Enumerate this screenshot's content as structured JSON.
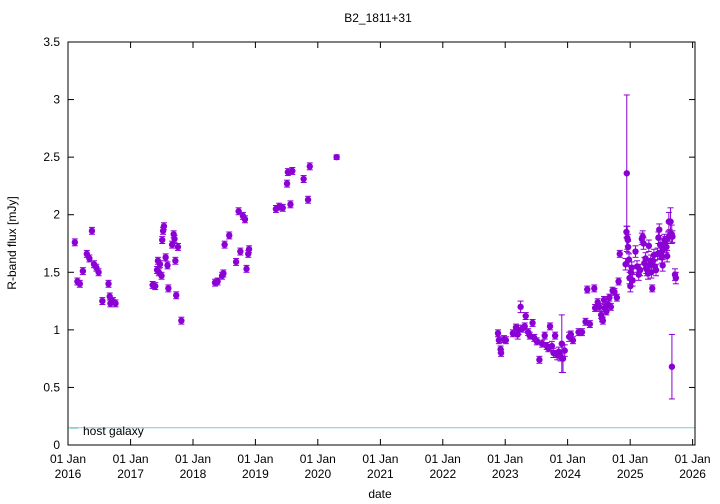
{
  "chart_data": {
    "type": "scatter",
    "title": "B2_1811+31",
    "xlabel": "date",
    "ylabel": "R-band flux [mJy]",
    "ylim": [
      0,
      3.5
    ],
    "xlim": [
      "2016-01-01",
      "2026-01-15"
    ],
    "grid": false,
    "legend_position": "bottom-left",
    "y_ticks": [
      "0",
      "0.5",
      "1",
      "1.5",
      "2",
      "2.5",
      "3",
      "3.5"
    ],
    "x_ticks": [
      {
        "date": "2016-01-01",
        "line1": "01 Jan",
        "line2": "2016"
      },
      {
        "date": "2017-01-01",
        "line1": "01 Jan",
        "line2": "2017"
      },
      {
        "date": "2018-01-01",
        "line1": "01 Jan",
        "line2": "2018"
      },
      {
        "date": "2019-01-01",
        "line1": "01 Jan",
        "line2": "2019"
      },
      {
        "date": "2020-01-01",
        "line1": "01 Jan",
        "line2": "2020"
      },
      {
        "date": "2021-01-01",
        "line1": "01 Jan",
        "line2": "2021"
      },
      {
        "date": "2022-01-01",
        "line1": "01 Jan",
        "line2": "2022"
      },
      {
        "date": "2023-01-01",
        "line1": "01 Jan",
        "line2": "2023"
      },
      {
        "date": "2024-01-01",
        "line1": "01 Jan",
        "line2": "2024"
      },
      {
        "date": "2025-01-01",
        "line1": "01 Jan",
        "line2": "2025"
      },
      {
        "date": "2026-01-01",
        "line1": "01 Jan",
        "line2": "2026"
      }
    ],
    "host_galaxy": {
      "name": "host galaxy",
      "value": 0.15,
      "color": "#7fc8d6"
    },
    "series_color": "#8b00d4",
    "series": [
      {
        "points": [
          [
            "2016-02-10",
            1.76,
            0.03
          ],
          [
            "2016-02-25",
            1.42,
            0.03
          ],
          [
            "2016-03-10",
            1.4,
            0.03
          ],
          [
            "2016-03-28",
            1.51,
            0.03
          ],
          [
            "2016-04-20",
            1.66,
            0.03
          ],
          [
            "2016-05-05",
            1.62,
            0.03
          ],
          [
            "2016-05-20",
            1.86,
            0.03
          ],
          [
            "2016-06-01",
            1.57,
            0.03
          ],
          [
            "2016-06-15",
            1.54,
            0.03
          ],
          [
            "2016-06-28",
            1.5,
            0.03
          ],
          [
            "2016-07-20",
            1.25,
            0.03
          ],
          [
            "2016-08-25",
            1.4,
            0.03
          ],
          [
            "2016-09-01",
            1.29,
            0.03
          ],
          [
            "2016-09-05",
            1.23,
            0.03
          ],
          [
            "2016-09-20",
            1.25,
            0.03
          ],
          [
            "2016-10-05",
            1.23,
            0.03
          ],
          [
            "2017-05-10",
            1.39,
            0.03
          ],
          [
            "2017-05-25",
            1.38,
            0.03
          ],
          [
            "2017-06-05",
            1.52,
            0.03
          ],
          [
            "2017-06-10",
            1.6,
            0.03
          ],
          [
            "2017-06-15",
            1.5,
            0.03
          ],
          [
            "2017-06-22",
            1.57,
            0.03
          ],
          [
            "2017-07-01",
            1.47,
            0.03
          ],
          [
            "2017-07-05",
            1.78,
            0.03
          ],
          [
            "2017-07-10",
            1.86,
            0.03
          ],
          [
            "2017-07-15",
            1.9,
            0.03
          ],
          [
            "2017-07-25",
            1.63,
            0.03
          ],
          [
            "2017-08-05",
            1.56,
            0.03
          ],
          [
            "2017-08-10",
            1.36,
            0.03
          ],
          [
            "2017-09-01",
            1.74,
            0.03
          ],
          [
            "2017-09-10",
            1.83,
            0.03
          ],
          [
            "2017-09-15",
            1.79,
            0.03
          ],
          [
            "2017-09-20",
            1.6,
            0.03
          ],
          [
            "2017-09-25",
            1.3,
            0.03
          ],
          [
            "2017-10-05",
            1.72,
            0.03
          ],
          [
            "2017-10-25",
            1.08,
            0.03
          ],
          [
            "2018-05-10",
            1.41,
            0.03
          ],
          [
            "2018-05-25",
            1.42,
            0.03
          ],
          [
            "2018-06-20",
            1.47,
            0.03
          ],
          [
            "2018-06-28",
            1.49,
            0.03
          ],
          [
            "2018-07-05",
            1.74,
            0.03
          ],
          [
            "2018-08-01",
            1.82,
            0.03
          ],
          [
            "2018-09-10",
            1.59,
            0.03
          ],
          [
            "2018-09-25",
            2.03,
            0.03
          ],
          [
            "2018-10-05",
            1.68,
            0.03
          ],
          [
            "2018-10-20",
            1.99,
            0.03
          ],
          [
            "2018-11-01",
            1.96,
            0.03
          ],
          [
            "2018-11-10",
            1.53,
            0.03
          ],
          [
            "2018-11-20",
            1.66,
            0.03
          ],
          [
            "2018-11-25",
            1.7,
            0.03
          ],
          [
            "2019-05-01",
            2.05,
            0.03
          ],
          [
            "2019-05-20",
            2.07,
            0.03
          ],
          [
            "2019-06-10",
            2.06,
            0.03
          ],
          [
            "2019-07-05",
            2.27,
            0.03
          ],
          [
            "2019-07-10",
            2.37,
            0.03
          ],
          [
            "2019-07-25",
            2.09,
            0.03
          ],
          [
            "2019-08-05",
            2.38,
            0.03
          ],
          [
            "2019-10-10",
            2.31,
            0.03
          ],
          [
            "2019-11-05",
            2.13,
            0.03
          ],
          [
            "2019-11-15",
            2.42,
            0.03
          ],
          [
            "2020-04-20",
            2.5,
            0.02
          ],
          [
            "2022-11-20",
            0.97,
            0.03
          ],
          [
            "2022-11-25",
            0.91,
            0.03
          ],
          [
            "2022-12-05",
            0.83,
            0.03
          ],
          [
            "2022-12-08",
            0.8,
            0.03
          ],
          [
            "2022-12-25",
            0.92,
            0.03
          ],
          [
            "2023-01-05",
            0.91,
            0.03
          ],
          [
            "2023-02-15",
            0.97,
            0.03
          ],
          [
            "2023-03-05",
            1.02,
            0.03
          ],
          [
            "2023-03-15",
            0.96,
            0.04
          ],
          [
            "2023-03-20",
            1.0,
            0.04
          ],
          [
            "2023-04-01",
            1.2,
            0.05
          ],
          [
            "2023-04-10",
            1.01,
            0.03
          ],
          [
            "2023-04-25",
            1.03,
            0.03
          ],
          [
            "2023-05-01",
            1.12,
            0.03
          ],
          [
            "2023-05-15",
            0.98,
            0.03
          ],
          [
            "2023-05-25",
            0.95,
            0.03
          ],
          [
            "2023-06-10",
            1.06,
            0.03
          ],
          [
            "2023-06-20",
            0.93,
            0.03
          ],
          [
            "2023-07-05",
            0.9,
            0.03
          ],
          [
            "2023-07-20",
            0.74,
            0.03
          ],
          [
            "2023-08-05",
            0.88,
            0.03
          ],
          [
            "2023-08-20",
            0.95,
            0.03
          ],
          [
            "2023-09-01",
            0.86,
            0.03
          ],
          [
            "2023-09-10",
            0.84,
            0.03
          ],
          [
            "2023-09-20",
            1.03,
            0.03
          ],
          [
            "2023-10-01",
            0.86,
            0.04
          ],
          [
            "2023-10-10",
            0.8,
            0.04
          ],
          [
            "2023-10-20",
            0.95,
            0.03
          ],
          [
            "2023-11-01",
            0.78,
            0.04
          ],
          [
            "2023-11-10",
            0.81,
            0.04
          ],
          [
            "2023-11-20",
            0.77,
            0.04
          ],
          [
            "2023-11-28",
            0.88,
            0.25
          ],
          [
            "2023-12-05",
            0.75,
            0.12
          ],
          [
            "2023-12-15",
            0.82,
            0.05
          ],
          [
            "2024-01-10",
            0.94,
            0.04
          ],
          [
            "2024-01-20",
            0.96,
            0.03
          ],
          [
            "2024-02-01",
            0.91,
            0.03
          ],
          [
            "2024-03-05",
            0.98,
            0.03
          ],
          [
            "2024-03-25",
            0.98,
            0.03
          ],
          [
            "2024-04-15",
            1.07,
            0.03
          ],
          [
            "2024-04-25",
            1.35,
            0.03
          ],
          [
            "2024-05-10",
            1.05,
            0.03
          ],
          [
            "2024-06-05",
            1.36,
            0.03
          ],
          [
            "2024-06-10",
            1.19,
            0.03
          ],
          [
            "2024-06-25",
            1.24,
            0.03
          ],
          [
            "2024-07-05",
            1.2,
            0.03
          ],
          [
            "2024-07-15",
            1.13,
            0.03
          ],
          [
            "2024-07-20",
            1.1,
            0.03
          ],
          [
            "2024-07-25",
            1.08,
            0.03
          ],
          [
            "2024-08-01",
            1.26,
            0.03
          ],
          [
            "2024-08-05",
            1.19,
            0.03
          ],
          [
            "2024-08-15",
            1.16,
            0.03
          ],
          [
            "2024-08-25",
            1.22,
            0.03
          ],
          [
            "2024-09-01",
            1.28,
            0.03
          ],
          [
            "2024-09-10",
            1.2,
            0.03
          ],
          [
            "2024-09-20",
            1.34,
            0.03
          ],
          [
            "2024-10-01",
            1.33,
            0.03
          ],
          [
            "2024-10-15",
            1.28,
            0.03
          ],
          [
            "2024-10-25",
            1.42,
            0.03
          ],
          [
            "2024-11-01",
            1.66,
            0.03
          ],
          [
            "2024-12-05",
            1.57,
            0.05
          ],
          [
            "2024-12-10",
            1.85,
            0.05
          ],
          [
            "2024-12-12",
            2.36,
            0.68
          ],
          [
            "2024-12-15",
            1.8,
            0.1
          ],
          [
            "2024-12-18",
            1.78,
            0.05
          ],
          [
            "2024-12-20",
            1.72,
            0.05
          ],
          [
            "2024-12-25",
            1.61,
            0.05
          ],
          [
            "2024-12-28",
            1.45,
            0.05
          ],
          [
            "2025-01-02",
            1.38,
            0.05
          ],
          [
            "2025-01-05",
            1.5,
            0.05
          ],
          [
            "2025-01-10",
            1.54,
            0.05
          ],
          [
            "2025-01-15",
            1.43,
            0.05
          ],
          [
            "2025-02-01",
            1.68,
            0.05
          ],
          [
            "2025-02-10",
            1.55,
            0.05
          ],
          [
            "2025-02-20",
            1.48,
            0.05
          ],
          [
            "2025-03-01",
            1.52,
            0.05
          ],
          [
            "2025-03-10",
            1.79,
            0.05
          ],
          [
            "2025-03-15",
            1.81,
            0.05
          ],
          [
            "2025-03-20",
            1.75,
            0.05
          ],
          [
            "2025-03-25",
            1.58,
            0.05
          ],
          [
            "2025-04-01",
            1.62,
            0.05
          ],
          [
            "2025-04-05",
            1.54,
            0.05
          ],
          [
            "2025-04-10",
            1.52,
            0.05
          ],
          [
            "2025-04-15",
            1.49,
            0.05
          ],
          [
            "2025-04-20",
            1.73,
            0.05
          ],
          [
            "2025-04-25",
            1.56,
            0.05
          ],
          [
            "2025-05-01",
            1.6,
            0.05
          ],
          [
            "2025-05-05",
            1.5,
            0.05
          ],
          [
            "2025-05-10",
            1.36,
            0.03
          ],
          [
            "2025-05-15",
            1.6,
            0.05
          ],
          [
            "2025-05-20",
            1.65,
            0.05
          ],
          [
            "2025-05-25",
            1.55,
            0.05
          ],
          [
            "2025-06-01",
            1.52,
            0.05
          ],
          [
            "2025-06-10",
            1.66,
            0.05
          ],
          [
            "2025-06-15",
            1.8,
            0.05
          ],
          [
            "2025-06-20",
            1.87,
            0.05
          ],
          [
            "2025-06-25",
            1.74,
            0.05
          ],
          [
            "2025-07-01",
            1.67,
            0.05
          ],
          [
            "2025-07-05",
            1.63,
            0.05
          ],
          [
            "2025-07-10",
            1.56,
            0.05
          ],
          [
            "2025-07-15",
            1.7,
            0.05
          ],
          [
            "2025-07-20",
            1.78,
            0.05
          ],
          [
            "2025-07-25",
            1.76,
            0.05
          ],
          [
            "2025-08-01",
            1.72,
            0.05
          ],
          [
            "2025-08-05",
            1.64,
            0.05
          ],
          [
            "2025-08-10",
            1.8,
            0.05
          ],
          [
            "2025-08-15",
            1.94,
            0.08
          ],
          [
            "2025-08-20",
            1.82,
            0.05
          ],
          [
            "2025-08-25",
            1.94,
            0.12
          ],
          [
            "2025-09-01",
            1.83,
            0.08
          ],
          [
            "2025-09-02",
            0.68,
            0.28
          ],
          [
            "2025-09-05",
            1.81,
            0.05
          ],
          [
            "2025-09-20",
            1.48,
            0.05
          ],
          [
            "2025-09-25",
            1.45,
            0.05
          ]
        ]
      }
    ]
  }
}
